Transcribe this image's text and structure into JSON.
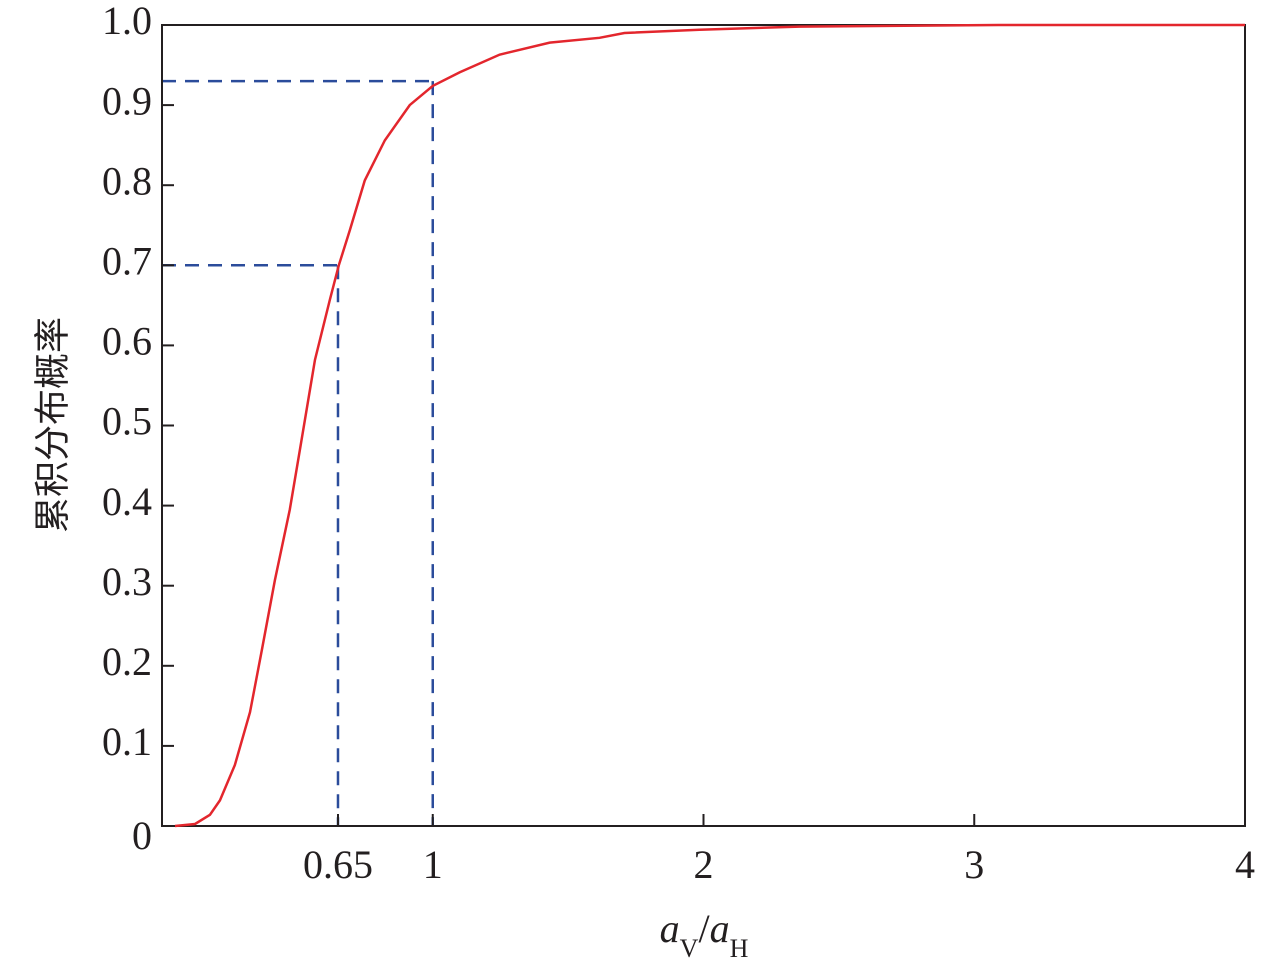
{
  "chart_data": {
    "type": "line",
    "y_label": "累积分布概率",
    "x_label": [
      "a",
      "V",
      "/",
      "a",
      "H"
    ],
    "x": [
      0.048,
      0.122,
      0.177,
      0.214,
      0.269,
      0.325,
      0.369,
      0.417,
      0.472,
      0.509,
      0.565,
      0.62,
      0.653,
      0.694,
      0.749,
      0.823,
      0.915,
      1.0,
      1.1,
      1.247,
      1.432,
      1.616,
      1.708,
      1.985,
      2.354,
      3.09,
      4.0
    ],
    "series": [
      {
        "color": "#e3262d",
        "values": [
          0,
          0.0025,
          0.014,
          0.032,
          0.076,
          0.142,
          0.22,
          0.307,
          0.395,
          0.469,
          0.582,
          0.657,
          0.7,
          0.744,
          0.806,
          0.856,
          0.9,
          0.924,
          0.941,
          0.963,
          0.978,
          0.984,
          0.99,
          0.994,
          0.998,
          1.0,
          1.0
        ]
      }
    ],
    "reference_lines": [
      {
        "x": 0.65,
        "y": 0.7,
        "color": "#2b4c9b"
      },
      {
        "x": 1,
        "y": 0.93,
        "color": "#2b4c9b"
      }
    ],
    "xlim": [
      0,
      4
    ],
    "xticks": [
      0.65,
      1,
      2,
      3,
      4
    ],
    "ylim": [
      0,
      1
    ],
    "yticks": [
      0,
      0.1,
      0.2,
      0.3,
      0.4,
      0.5,
      0.6,
      0.7,
      0.8,
      0.9,
      {
        "value": 1,
        "label": "1.0"
      }
    ]
  }
}
